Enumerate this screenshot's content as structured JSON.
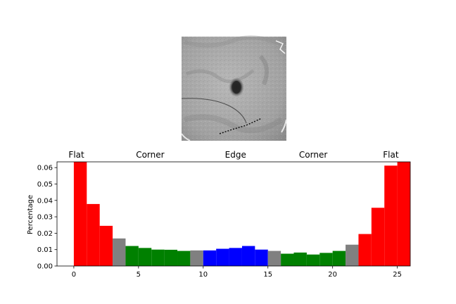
{
  "chart_data": {
    "type": "bar",
    "title": "",
    "xlabel": "",
    "ylabel": "Percentage",
    "xlim": [
      -1.3,
      26
    ],
    "ylim": [
      0,
      0.0635
    ],
    "x_ticks": [
      0,
      5,
      10,
      15,
      20,
      25
    ],
    "y_ticks": [
      0.0,
      0.01,
      0.02,
      0.03,
      0.04,
      0.05,
      0.06
    ],
    "y_tick_labels": [
      "0.00",
      "0.01",
      "0.02",
      "0.03",
      "0.04",
      "0.05",
      "0.06"
    ],
    "grid": false,
    "group_labels": [
      {
        "text": "Flat",
        "x": 0.2
      },
      {
        "text": "Corner",
        "x": 5.9
      },
      {
        "text": "Edge",
        "x": 12.5
      },
      {
        "text": "Corner",
        "x": 18.5
      },
      {
        "text": "Flat",
        "x": 24.5
      }
    ],
    "colors": {
      "flat": "#ff0000",
      "corner": "#008000",
      "edge": "#0000ff",
      "transition": "#808080"
    },
    "bars": [
      {
        "x": 0,
        "value": 0.0635,
        "group": "flat"
      },
      {
        "x": 1,
        "value": 0.0378,
        "group": "flat"
      },
      {
        "x": 2,
        "value": 0.0245,
        "group": "flat"
      },
      {
        "x": 3,
        "value": 0.0168,
        "group": "transition"
      },
      {
        "x": 4,
        "value": 0.0122,
        "group": "corner"
      },
      {
        "x": 5,
        "value": 0.011,
        "group": "corner"
      },
      {
        "x": 6,
        "value": 0.01,
        "group": "corner"
      },
      {
        "x": 7,
        "value": 0.0099,
        "group": "corner"
      },
      {
        "x": 8,
        "value": 0.0092,
        "group": "corner"
      },
      {
        "x": 9,
        "value": 0.0095,
        "group": "transition"
      },
      {
        "x": 10,
        "value": 0.0095,
        "group": "edge"
      },
      {
        "x": 11,
        "value": 0.0105,
        "group": "edge"
      },
      {
        "x": 12,
        "value": 0.011,
        "group": "edge"
      },
      {
        "x": 13,
        "value": 0.0122,
        "group": "edge"
      },
      {
        "x": 14,
        "value": 0.01,
        "group": "edge"
      },
      {
        "x": 15,
        "value": 0.0092,
        "group": "transition"
      },
      {
        "x": 16,
        "value": 0.0075,
        "group": "corner"
      },
      {
        "x": 17,
        "value": 0.0082,
        "group": "corner"
      },
      {
        "x": 18,
        "value": 0.007,
        "group": "corner"
      },
      {
        "x": 19,
        "value": 0.008,
        "group": "corner"
      },
      {
        "x": 20,
        "value": 0.0092,
        "group": "corner"
      },
      {
        "x": 21,
        "value": 0.013,
        "group": "transition"
      },
      {
        "x": 22,
        "value": 0.0195,
        "group": "flat"
      },
      {
        "x": 23,
        "value": 0.0355,
        "group": "flat"
      },
      {
        "x": 24,
        "value": 0.0612,
        "group": "flat"
      },
      {
        "x": 25,
        "value": 0.0635,
        "group": "flat"
      }
    ]
  }
}
